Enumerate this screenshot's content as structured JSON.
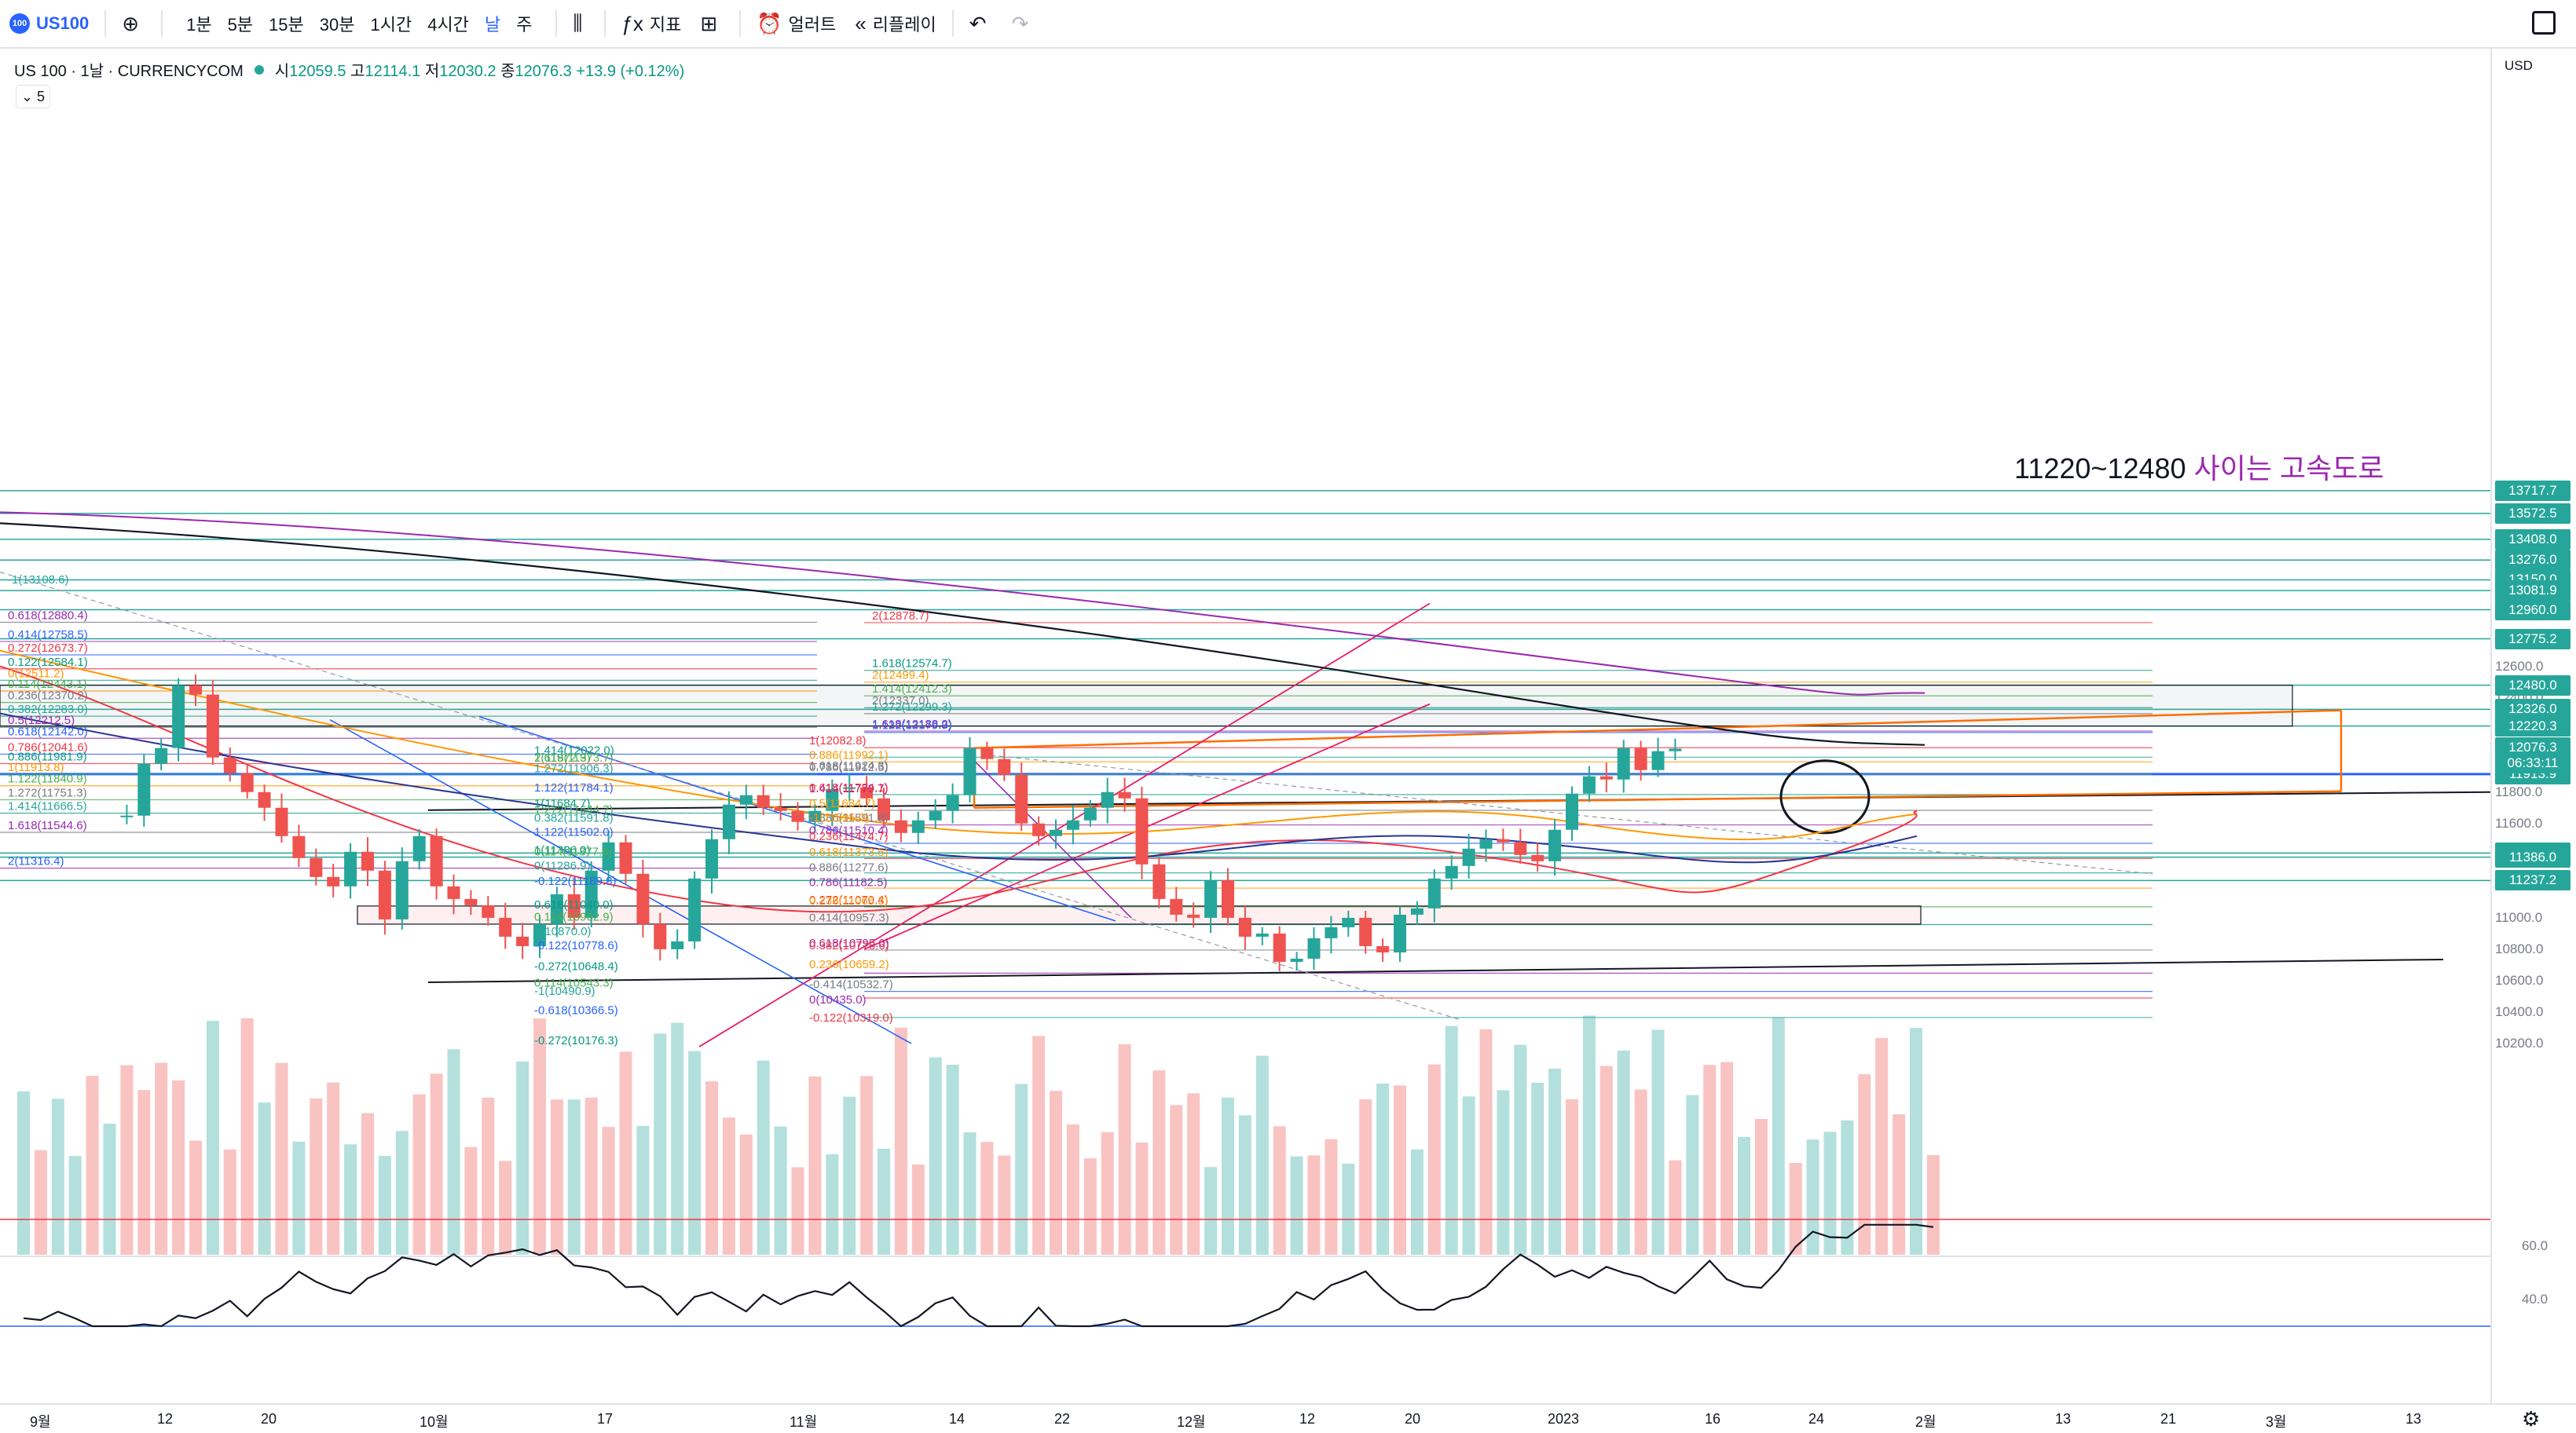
{
  "toolbar": {
    "symbol_badge": "100",
    "symbol": "US100",
    "add_icon": "plus-circle-icon",
    "timeframes": [
      "1분",
      "5분",
      "15분",
      "30분",
      "1시간",
      "4시간",
      "날",
      "주"
    ],
    "active_timeframe": "날",
    "indicators_label": "지표",
    "alert_label": "얼러트",
    "replay_label": "리플레이"
  },
  "legend": {
    "title": "US 100 · 1날 · CURRENCYCOM",
    "open_key": "시",
    "open": "12059.5",
    "high_key": "고",
    "high": "12114.1",
    "low_key": "저",
    "low": "12030.2",
    "close_key": "종",
    "close": "12076.3",
    "change": "+13.9 (+0.12%)",
    "indicator_count": "5"
  },
  "annotation": {
    "range_text": "11220~12480",
    "road_text": "사이는 고속도로"
  },
  "price_axis": {
    "currency": "USD",
    "labels": [
      "13600.0",
      "13400.0",
      "13200.0",
      "13000.0",
      "12800.0",
      "12600.0",
      "12400.0",
      "12200.0",
      "12000.0",
      "11800.0",
      "11600.0",
      "11400.0",
      "11200.0",
      "11000.0",
      "10800.0",
      "10600.0",
      "10400.0",
      "10200.0"
    ],
    "tags": [
      {
        "price": "13717.7"
      },
      {
        "price": "13572.5"
      },
      {
        "price": "13408.0"
      },
      {
        "price": "13276.0"
      },
      {
        "price": "13150.0"
      },
      {
        "price": "13081.9"
      },
      {
        "price": "12960.0"
      },
      {
        "price": "12775.2"
      },
      {
        "price": "12480.0"
      },
      {
        "price": "12326.0"
      },
      {
        "price": "12220.3"
      },
      {
        "price": "11913.9"
      },
      {
        "price": "11412.1"
      },
      {
        "price": "11386.0"
      },
      {
        "price": "11237.2"
      }
    ],
    "current_price": "12076.3",
    "countdown": "06:33:11"
  },
  "rsi_axis": {
    "labels": [
      "60.0",
      "40.0"
    ]
  },
  "time_axis": {
    "labels": [
      "9월",
      "12",
      "20",
      "10월",
      "17",
      "11월",
      "14",
      "22",
      "12월",
      "12",
      "20",
      "2023",
      "16",
      "24",
      "2월",
      "13",
      "21",
      "3월",
      "13"
    ]
  },
  "fib_labels": [
    "-1(13108.6)",
    "0.618(12880.4)",
    "0.414(12758.5)",
    "0.272(12673.7)",
    "0.122(12584.1)",
    "0(12511.2)",
    "0.114(12443.1)",
    "0.236(12370.2)",
    "0.382(12283.0)",
    "0.5(12212.5)",
    "0.618(12142.0)",
    "0.786(12041.6)",
    "0.886(11981.9)",
    "1(11913.8)",
    "1.122(11840.9)",
    "1.272(11751.3)",
    "1.414(11666.5)",
    "1.618(11544.6)",
    "2(11316.4)",
    "2(12878.7)",
    "1.618(12574.7)",
    "2(12499.4)",
    "1.414(12412.3)",
    "2(12337.0)",
    "1.272(12299.3)",
    "1.618(12188.2)",
    "1.122(12179.9)",
    "1(12082.8)",
    "1.414(12022.0)",
    "0.886(11992.1)",
    "1.618(11973.7)",
    "0.786(11912.5)",
    "1.272(11906.3)",
    "1.414(11779.7)",
    "1.122(11784.1)",
    "0.618(11784.1)",
    "1(11684.7)",
    "0.5(11684.7)",
    "1.272(11644.7)",
    "0.886(11591.8)",
    "0.382(11591.8)",
    "0.786(11510.4)",
    "1.122(11502.0)",
    "0.236(11474.7)",
    "1(11386.0)",
    "0.618(11373.5)",
    "0.114(11377.6)",
    "0.886(11277.6)",
    "0(11286.9)",
    "0.786(11182.5)",
    "-0.122(11189.8)",
    "0.272(11070.4)",
    "0.618(11040.0)",
    "0.236(11065.3)",
    "0.114(10962.9)",
    "0.414(10957.3)",
    "0(10870.0)",
    "0.618(10795.0)",
    "-0.122(10778.6)",
    "0.382(10778.6)",
    "-0.272(10648.4)",
    "0.236(10659.2)",
    "0.114(10543.3)",
    "-0.414(10532.7)",
    "-1(10490.9)",
    "0(10435.0)",
    "-0.618(10366.5)",
    "-0.122(10319.0)",
    "-0.272(10176.3)",
    "-1(11595.0)",
    "2(11972.3)",
    "1.618(11924.3)"
  ],
  "colors": {
    "up": "#26a69a",
    "down": "#ef5350",
    "accent": "#2962ff",
    "sma200": "#131722",
    "ema_orange": "#ff9800",
    "purple": "#9c27b0",
    "red_ma": "#f23645",
    "navy_ma": "#283593"
  }
}
